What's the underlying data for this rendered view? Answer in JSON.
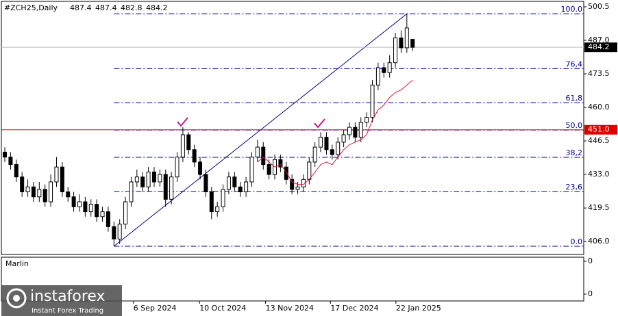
{
  "chart_data": {
    "type": "candlestick",
    "title": "#ZCH25,Daily",
    "open": [
      442,
      440,
      437,
      432,
      426,
      428,
      424,
      427,
      422,
      430,
      436,
      426,
      424,
      420,
      422,
      418,
      421,
      416,
      418,
      412,
      407,
      413,
      422,
      430,
      432,
      428,
      434,
      430,
      433,
      423,
      432,
      440,
      449,
      443,
      438,
      433,
      426,
      418,
      420,
      427,
      432,
      428,
      426,
      430,
      440,
      444,
      437,
      433,
      439,
      436,
      431,
      427,
      428,
      431,
      438,
      444,
      448,
      443,
      441,
      446,
      449,
      452,
      448,
      454,
      456,
      469,
      476,
      474,
      478,
      488,
      484,
      487.4
    ],
    "high": [
      444,
      442,
      439,
      434,
      431,
      430,
      430,
      429,
      433,
      440,
      438,
      428,
      426,
      425,
      424,
      423,
      423,
      420,
      420,
      414,
      415,
      424,
      432,
      435,
      434,
      436,
      436,
      435,
      435,
      434,
      442,
      452,
      450,
      445,
      440,
      435,
      428,
      422,
      429,
      434,
      434,
      430,
      432,
      442,
      447,
      446,
      439,
      441,
      441,
      438,
      433,
      430,
      433,
      440,
      446,
      450,
      450,
      445,
      448,
      451,
      454,
      454,
      456,
      458,
      471,
      478,
      478,
      481,
      490,
      491,
      497.7,
      487.4
    ],
    "low": [
      438,
      435,
      430,
      424,
      424,
      422,
      422,
      420,
      420,
      428,
      424,
      422,
      418,
      418,
      416,
      416,
      414,
      414,
      410,
      404.1,
      405,
      411,
      420,
      428,
      426,
      426,
      428,
      428,
      420,
      421,
      430,
      438,
      441,
      436,
      431,
      424,
      415,
      416,
      418,
      425,
      426,
      424,
      424,
      428,
      438,
      435,
      431,
      431,
      434,
      429,
      425,
      425,
      426,
      429,
      436,
      442,
      441,
      439,
      439,
      444,
      447,
      446,
      446,
      452,
      454,
      467,
      472,
      472,
      476,
      482,
      482,
      482.8
    ],
    "close": [
      440,
      437,
      432,
      426,
      428,
      424,
      427,
      422,
      430,
      436,
      426,
      424,
      420,
      422,
      418,
      421,
      416,
      418,
      412,
      407,
      413,
      422,
      430,
      432,
      428,
      434,
      430,
      433,
      423,
      432,
      440,
      449,
      443,
      438,
      433,
      426,
      418,
      420,
      427,
      432,
      428,
      426,
      430,
      440,
      444,
      437,
      433,
      439,
      436,
      431,
      427,
      428,
      431,
      438,
      444,
      448,
      443,
      441,
      446,
      449,
      452,
      448,
      454,
      456,
      469,
      476,
      474,
      478,
      488,
      484,
      492,
      484.2
    ],
    "up_color": "#ffffff",
    "down_color": "#000000",
    "xlim": [
      -0.6,
      100.8
    ],
    "xticks": [
      {
        "value": 22.4,
        "label": "6 Sep 2024"
      },
      {
        "value": 33.9,
        "label": "10 Oct 2024"
      },
      {
        "value": 45.4,
        "label": "13 Nov 2024"
      },
      {
        "value": 56.7,
        "label": "17 Dec 2024"
      },
      {
        "value": 68.1,
        "label": "22 Jan 2025"
      }
    ],
    "ylim": [
      400.8,
      502.7
    ],
    "yticks": [
      500.5,
      {
        "value": 487,
        "label": "487.0"
      },
      473.5,
      {
        "value": 460,
        "label": "460.0"
      },
      446.5,
      {
        "value": 433,
        "label": "433.0"
      },
      419.5,
      {
        "value": 406,
        "label": "406.0"
      }
    ],
    "moving_average": {
      "color": "#dc143c",
      "values": [
        null,
        null,
        null,
        null,
        null,
        null,
        null,
        null,
        null,
        null,
        null,
        null,
        null,
        null,
        null,
        null,
        null,
        null,
        null,
        null,
        null,
        null,
        null,
        null,
        null,
        null,
        null,
        null,
        null,
        null,
        null,
        null,
        null,
        null,
        null,
        null,
        null,
        null,
        null,
        null,
        null,
        null,
        null,
        null,
        438,
        440,
        438,
        436,
        437,
        434,
        430,
        429,
        429,
        431,
        434,
        437,
        438,
        437,
        440,
        443,
        445,
        446,
        447,
        449,
        455,
        459,
        461,
        464,
        466,
        467,
        469,
        471
      ]
    },
    "trendline": {
      "color": "#00008b",
      "x": [
        19,
        70
      ],
      "y": [
        404.1,
        497.7
      ]
    },
    "fibonacci": {
      "color": "#00008b",
      "start": 19,
      "levels": [
        {
          "label": "0.0",
          "value": 404.1
        },
        {
          "label": "23,6",
          "value": 426.2
        },
        {
          "label": "38,2",
          "value": 439.9
        },
        {
          "label": "50.0",
          "value": 450.9
        },
        {
          "label": "61,8",
          "value": 461.9
        },
        {
          "label": "76,4",
          "value": 475.6
        },
        {
          "label": "100.0",
          "value": 497.7
        }
      ]
    },
    "hline": {
      "value": 451,
      "label": "451.0",
      "color": "#e00000"
    },
    "indicator": {
      "name": "Marlin",
      "yticks": [
        0,
        0
      ]
    }
  },
  "watermark": {
    "brand": "instaforex",
    "slogan": "Instant Forex Trading"
  }
}
